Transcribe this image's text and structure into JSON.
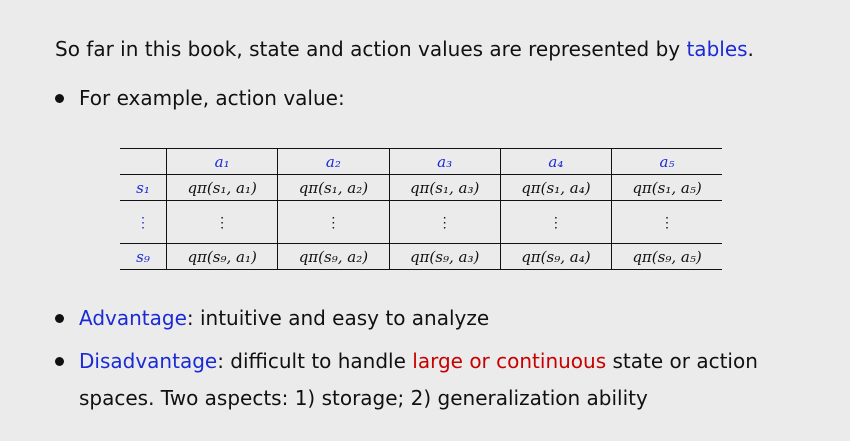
{
  "intro": {
    "prefix": "So far in this book, state and action values are represented by ",
    "highlight": "tables",
    "suffix": "."
  },
  "bullet_example": "For example, action value:",
  "table": {
    "columns": [
      "a₁",
      "a₂",
      "a₃",
      "a₄",
      "a₅"
    ],
    "rows": [
      {
        "label": "s₁",
        "cells": [
          "qπ(s₁, a₁)",
          "qπ(s₁, a₂)",
          "qπ(s₁, a₃)",
          "qπ(s₁, a₄)",
          "qπ(s₁, a₅)"
        ]
      },
      {
        "label": "⋮",
        "cells": [
          "⋮",
          "⋮",
          "⋮",
          "⋮",
          "⋮"
        ]
      },
      {
        "label": "s₉",
        "cells": [
          "qπ(s₉, a₁)",
          "qπ(s₉, a₂)",
          "qπ(s₉, a₃)",
          "qπ(s₉, a₄)",
          "qπ(s₉, a₅)"
        ]
      }
    ]
  },
  "advantage": {
    "term": "Advantage",
    "text": ": intuitive and easy to analyze"
  },
  "disadvantage": {
    "term": "Disadvantage",
    "text_before": ": difficult to handle ",
    "highlight": "large or continuous",
    "text_after": " state or action",
    "line2": "spaces. Two aspects: 1) storage; 2) generalization ability"
  },
  "colors": {
    "background": "#ebebeb",
    "blue": "#1a2bd6",
    "red": "#c80000"
  }
}
